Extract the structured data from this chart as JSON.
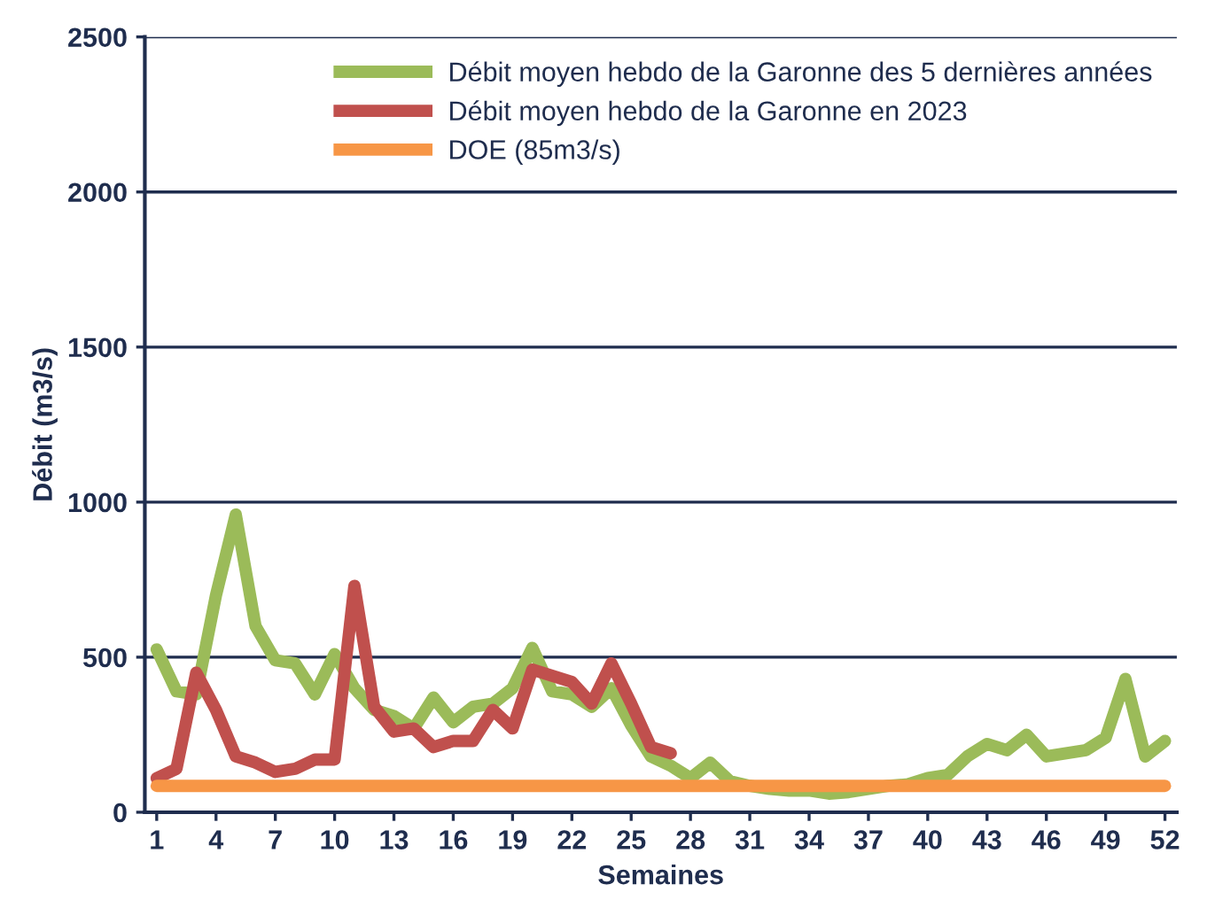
{
  "chart_data": {
    "type": "line",
    "xlabel": "Semaines",
    "ylabel": "Débit (m3/s)",
    "x": [
      1,
      2,
      3,
      4,
      5,
      6,
      7,
      8,
      9,
      10,
      11,
      12,
      13,
      14,
      15,
      16,
      17,
      18,
      19,
      20,
      21,
      22,
      23,
      24,
      25,
      26,
      27,
      28,
      29,
      30,
      31,
      32,
      33,
      34,
      35,
      36,
      37,
      38,
      39,
      40,
      41,
      42,
      43,
      44,
      45,
      46,
      47,
      48,
      49,
      50,
      51,
      52
    ],
    "series": [
      {
        "name": "Débit moyen hebdo de la Garonne des 5 dernières années",
        "color": "#9bbb59",
        "values": [
          525,
          390,
          380,
          700,
          960,
          600,
          490,
          480,
          380,
          510,
          400,
          330,
          310,
          270,
          370,
          290,
          340,
          350,
          400,
          530,
          390,
          380,
          340,
          400,
          280,
          180,
          150,
          110,
          160,
          100,
          85,
          75,
          70,
          70,
          60,
          65,
          75,
          85,
          90,
          110,
          120,
          180,
          220,
          200,
          250,
          180,
          190,
          200,
          240,
          430,
          180,
          230
        ]
      },
      {
        "name": "Débit moyen hebdo de la Garonne en 2023",
        "color": "#c0504d",
        "values": [
          110,
          140,
          450,
          330,
          180,
          160,
          130,
          140,
          170,
          170,
          730,
          340,
          260,
          270,
          210,
          230,
          230,
          330,
          270,
          460,
          440,
          420,
          350,
          480,
          350,
          210,
          190,
          null,
          null,
          null,
          null,
          null,
          null,
          null,
          null,
          null,
          null,
          null,
          null,
          null,
          null,
          null,
          null,
          null,
          null,
          null,
          null,
          null,
          null,
          null,
          null,
          null
        ]
      },
      {
        "name": "DOE (85m3/s)",
        "color": "#f79646",
        "values": [
          85,
          85,
          85,
          85,
          85,
          85,
          85,
          85,
          85,
          85,
          85,
          85,
          85,
          85,
          85,
          85,
          85,
          85,
          85,
          85,
          85,
          85,
          85,
          85,
          85,
          85,
          85,
          85,
          85,
          85,
          85,
          85,
          85,
          85,
          85,
          85,
          85,
          85,
          85,
          85,
          85,
          85,
          85,
          85,
          85,
          85,
          85,
          85,
          85,
          85,
          85,
          85
        ]
      }
    ],
    "xlim": [
      0.4,
      52.6
    ],
    "xticks": [
      1,
      4,
      7,
      10,
      13,
      16,
      19,
      22,
      25,
      28,
      31,
      34,
      37,
      40,
      43,
      46,
      49,
      52
    ],
    "ylim": [
      0,
      2500
    ],
    "yticks": [
      0,
      500,
      1000,
      1500,
      2000,
      2500
    ],
    "grid": "y",
    "legend": "top right",
    "marker": "none",
    "line_style": "solid"
  }
}
